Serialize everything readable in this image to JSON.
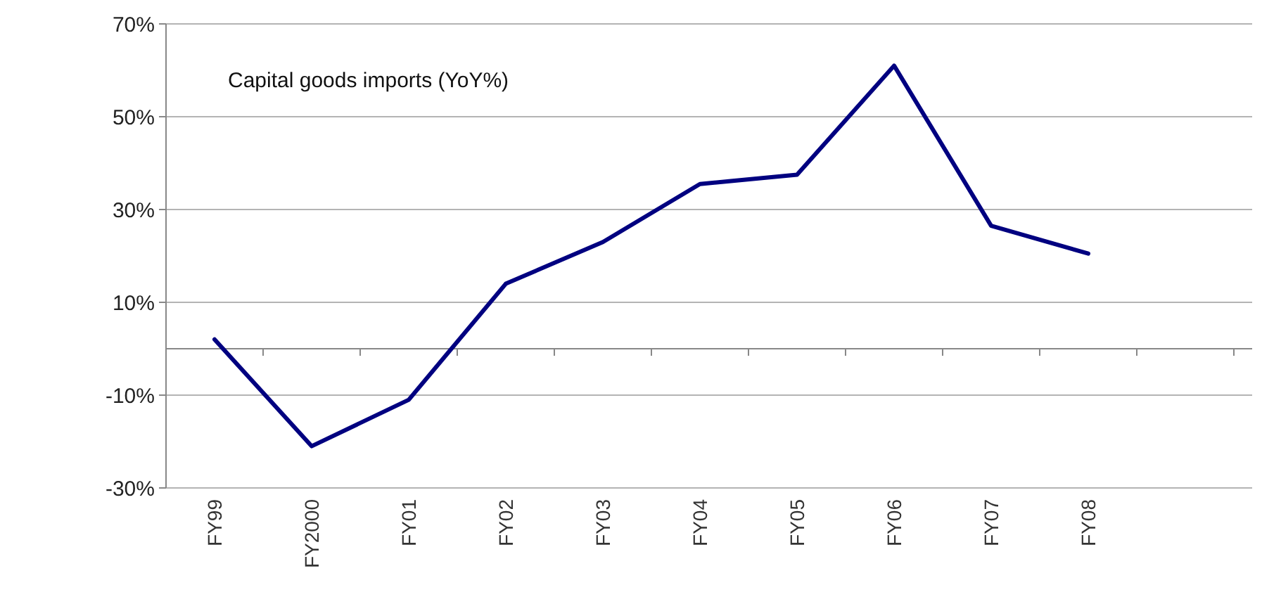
{
  "chart_data": {
    "type": "line",
    "title": "Capital goods imports (YoY%)",
    "categories": [
      "FY99",
      "FY2000",
      "FY01",
      "FY02",
      "FY03",
      "FY04",
      "FY05",
      "FY06",
      "FY07",
      "FY08"
    ],
    "series": [
      {
        "color": "#000080",
        "values": [
          2,
          -21,
          -11,
          14,
          23,
          35.5,
          37.5,
          61,
          26.5,
          20.5
        ]
      }
    ],
    "ylim": [
      -30,
      70
    ],
    "yticks": [
      {
        "value": -30,
        "label": "-30%"
      },
      {
        "value": -10,
        "label": "-10%"
      },
      {
        "value": 10,
        "label": "10%"
      },
      {
        "value": 30,
        "label": "30%"
      },
      {
        "value": 50,
        "label": "50%"
      },
      {
        "value": 70,
        "label": "70%"
      }
    ],
    "grid": "y",
    "marker": "none",
    "line_style": "solid"
  }
}
